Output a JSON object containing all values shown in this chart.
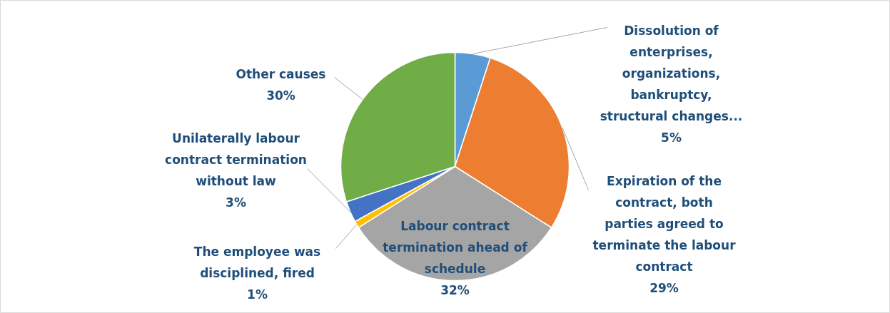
{
  "chart_data": {
    "type": "pie",
    "categories": [
      "Dissolution of enterprises, organizations, bankruptcy, structural changes...",
      "Expiration of the contract, both parties agreed to terminate the labour contract",
      "Labour contract termination ahead of schedule",
      "The employee was disciplined, fired",
      "Unilaterally labour contract termination without law",
      "Other causes"
    ],
    "values": [
      5,
      29,
      32,
      1,
      3,
      30
    ],
    "colors": [
      "#5b9bd5",
      "#ed7d31",
      "#a5a5a5",
      "#ffc000",
      "#4472c4",
      "#70ad47"
    ],
    "value_labels": [
      "5%",
      "29%",
      "32%",
      "1%",
      "3%",
      "30%"
    ]
  }
}
